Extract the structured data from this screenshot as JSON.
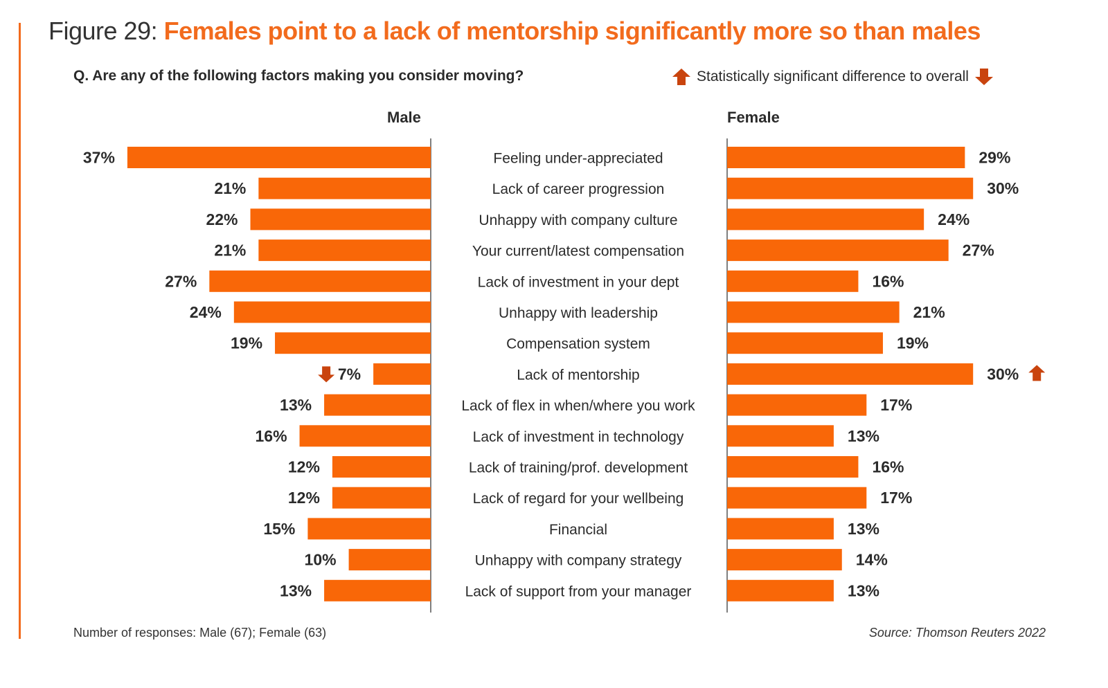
{
  "header": {
    "figure_prefix": "Figure 29: ",
    "headline": "Females point to a lack of mentorship significantly more so than males",
    "question": "Q. Are any of the following factors making you consider moving?",
    "legend_text": "Statistically significant difference to overall"
  },
  "colors": {
    "accent": "#f26b1d",
    "bar": "#f96708",
    "arrow": "#c9440e",
    "text": "#2b2b2b",
    "axis": "#555555"
  },
  "footer": {
    "responses": "Number of responses: Male (67); Female (63)",
    "source": "Source: Thomson Reuters 2022"
  },
  "chart_data": {
    "type": "bar",
    "orientation": "horizontal-butterfly",
    "title": "Females point to a lack of mentorship significantly more so than males",
    "subtitle": "Q. Are any of the following factors making you consider moving?",
    "unit": "%",
    "categories": [
      "Feeling under-appreciated",
      "Lack of career progression",
      "Unhappy with company culture",
      "Your current/latest compensation",
      "Lack of investment in your dept",
      "Unhappy with leadership",
      "Compensation system",
      "Lack of mentorship",
      "Lack of flex in when/where you work",
      "Lack of investment in technology",
      "Lack of training/prof. development",
      "Lack of regard for your wellbeing",
      "Financial",
      "Unhappy with company strategy",
      "Lack of support from your manager"
    ],
    "series": [
      {
        "name": "Male",
        "side": "left",
        "values": [
          37,
          21,
          22,
          21,
          27,
          24,
          19,
          7,
          13,
          16,
          12,
          12,
          15,
          10,
          13
        ],
        "significance": [
          null,
          null,
          null,
          null,
          null,
          null,
          null,
          "down",
          null,
          null,
          null,
          null,
          null,
          null,
          null
        ]
      },
      {
        "name": "Female",
        "side": "right",
        "values": [
          29,
          30,
          24,
          27,
          16,
          21,
          19,
          30,
          17,
          13,
          16,
          17,
          13,
          14,
          13
        ],
        "significance": [
          null,
          null,
          null,
          null,
          null,
          null,
          null,
          "up",
          null,
          null,
          null,
          null,
          null,
          null,
          null
        ]
      }
    ],
    "xlim": [
      0,
      37
    ],
    "grid": false,
    "legend": "top-right"
  }
}
